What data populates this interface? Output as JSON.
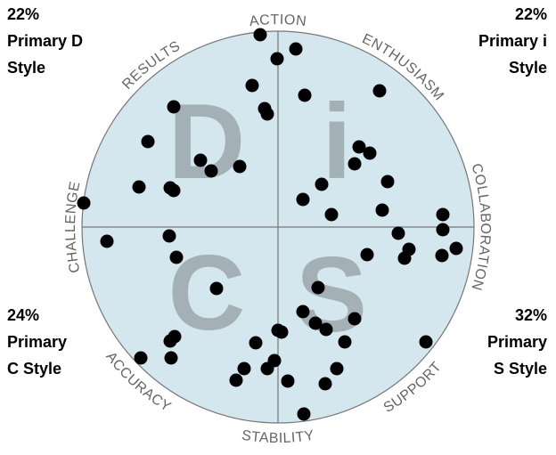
{
  "chart_data": {
    "type": "scatter",
    "xlim": [
      -220,
      220
    ],
    "ylim": [
      -220,
      220
    ],
    "color": "#000000",
    "circle_color": "#d4e6ee",
    "letter_color": "#a3b0b6",
    "rim_labels": [
      "ACTION",
      "ENTHUSIASM",
      "COLLABORATION",
      "SUPPORT",
      "STABILITY",
      "ACCURACY",
      "CHALLENGE",
      "RESULTS"
    ],
    "quadrants": {
      "letters": [
        "D",
        "i",
        "C",
        "S"
      ],
      "values": [
        22,
        22,
        24,
        32
      ],
      "value_labels": [
        "22%",
        "22%",
        "24%",
        "32%"
      ],
      "labels": [
        [
          "Primary D",
          "Style"
        ],
        [
          "Primary i",
          "Style"
        ],
        [
          "Primary",
          "C Style"
        ],
        [
          "Primary",
          "S Style"
        ]
      ]
    },
    "x": [
      -20,
      20,
      -1,
      -29,
      30,
      114,
      -117,
      -15,
      -12,
      -146,
      91,
      103,
      86,
      -87,
      -75,
      -43,
      123,
      49,
      -156,
      -121,
      -117,
      28,
      117,
      60,
      -218,
      185,
      185,
      135,
      147,
      142,
      100,
      184,
      200,
      -192,
      -122,
      -114,
      -69,
      45,
      28,
      86,
      42,
      54,
      0,
      4,
      -116,
      -121,
      -25,
      75,
      166,
      -154,
      -120,
      -4,
      -38,
      -12,
      66,
      -47,
      11,
      53,
      29
    ],
    "values": [
      216,
      200,
      189,
      159,
      148,
      153,
      135,
      133,
      127,
      96,
      90,
      83,
      71,
      75,
      63,
      68,
      51,
      48,
      45,
      44,
      41,
      31,
      19,
      14,
      27,
      14,
      -3,
      -7,
      -25,
      -35,
      -31,
      -32,
      -24,
      -16,
      -10,
      -34,
      -69,
      -68,
      -95,
      -103,
      -108,
      -115,
      -116,
      -118,
      -123,
      -128,
      -130,
      -129,
      -129,
      -147,
      -147,
      -150,
      -159,
      -159,
      -159,
      -172,
      -173,
      -176,
      -210
    ]
  }
}
